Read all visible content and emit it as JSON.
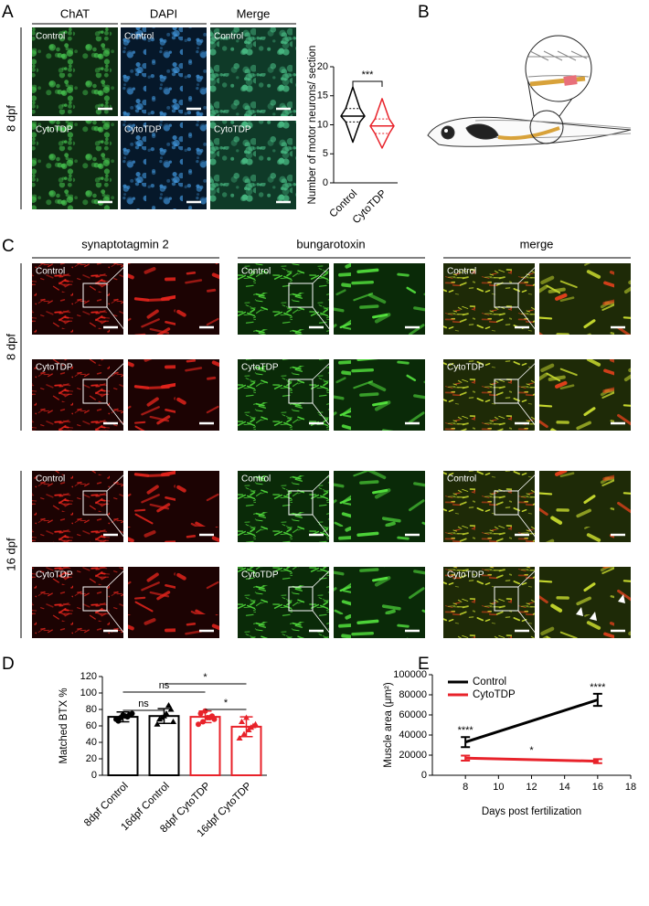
{
  "panel_labels": [
    "A",
    "B",
    "C",
    "D",
    "E"
  ],
  "panel_a": {
    "columns": [
      "ChAT",
      "DAPI",
      "Merge"
    ],
    "row_label": "8 dpf",
    "rows": [
      "Control",
      "CytoTDP"
    ]
  },
  "panel_c": {
    "columns": [
      "synaptotagmin 2",
      "bungarotoxin",
      "merge"
    ],
    "row_groups": [
      "8 dpf",
      "16 dpf"
    ],
    "rows": [
      "Control",
      "CytoTDP"
    ]
  },
  "chart_data": [
    {
      "type": "violin",
      "y_label": "Number of motor neurons/ section",
      "categories": [
        "Control",
        "CytoTDP"
      ],
      "colors": [
        "#000000",
        "#e8222a"
      ],
      "min": [
        7,
        6
      ],
      "q1": [
        10.5,
        8.5
      ],
      "median": [
        11.5,
        9.8
      ],
      "q3": [
        12.8,
        11
      ],
      "max": [
        16.5,
        14.5
      ],
      "ylim": [
        0,
        20
      ],
      "yticks": [
        0,
        5,
        10,
        15,
        20
      ],
      "significance": "***"
    },
    {
      "type": "bar",
      "y_label": "Matched BTX %",
      "categories": [
        "8dpf Control",
        "16dpf Control",
        "8dpf CytoTDP",
        "16dpf CytoTDP"
      ],
      "colors": [
        "#000000",
        "#000000",
        "#e8222a",
        "#e8222a"
      ],
      "markers": [
        "circle",
        "triangle",
        "circle",
        "triangle"
      ],
      "values": [
        71,
        72,
        71,
        59
      ],
      "errors": [
        6,
        9,
        7,
        12
      ],
      "points": [
        [
          68,
          70,
          72,
          74,
          66,
          73,
          71,
          75
        ],
        [
          62,
          70,
          75,
          80,
          68,
          72,
          85,
          65
        ],
        [
          62,
          65,
          70,
          72,
          75,
          78,
          70,
          68
        ],
        [
          45,
          50,
          55,
          60,
          65,
          70,
          58,
          62
        ]
      ],
      "ylim": [
        0,
        120
      ],
      "yticks": [
        0,
        20,
        40,
        60,
        80,
        100,
        120
      ],
      "comparisons": [
        {
          "pair": [
            0,
            1
          ],
          "label": "ns"
        },
        {
          "pair": [
            0,
            2
          ],
          "label": "ns"
        },
        {
          "pair": [
            1,
            3
          ],
          "label": "*"
        },
        {
          "pair": [
            2,
            3
          ],
          "label": "*"
        }
      ]
    },
    {
      "type": "line",
      "x_label": "Days post fertilization",
      "y_label": "Muscle area (μm²)",
      "x": [
        8,
        16
      ],
      "series": [
        {
          "name": "Control",
          "color": "#000000",
          "values": [
            33000,
            75000
          ],
          "errors": [
            5000,
            6000
          ]
        },
        {
          "name": "CytoTDP",
          "color": "#e8222a",
          "values": [
            17000,
            14000
          ],
          "errors": [
            2500,
            2000
          ]
        }
      ],
      "xlim": [
        6,
        18
      ],
      "xticks": [
        8,
        10,
        12,
        14,
        16,
        18
      ],
      "ylim": [
        0,
        100000
      ],
      "yticks": [
        0,
        20000,
        40000,
        60000,
        80000,
        100000
      ],
      "legend": "top-left",
      "annotations": [
        {
          "x": 8,
          "series": 0,
          "label": "****"
        },
        {
          "x": 16,
          "series": 0,
          "label": "****"
        },
        {
          "x": 12,
          "series": 1,
          "label": "*"
        }
      ]
    }
  ]
}
